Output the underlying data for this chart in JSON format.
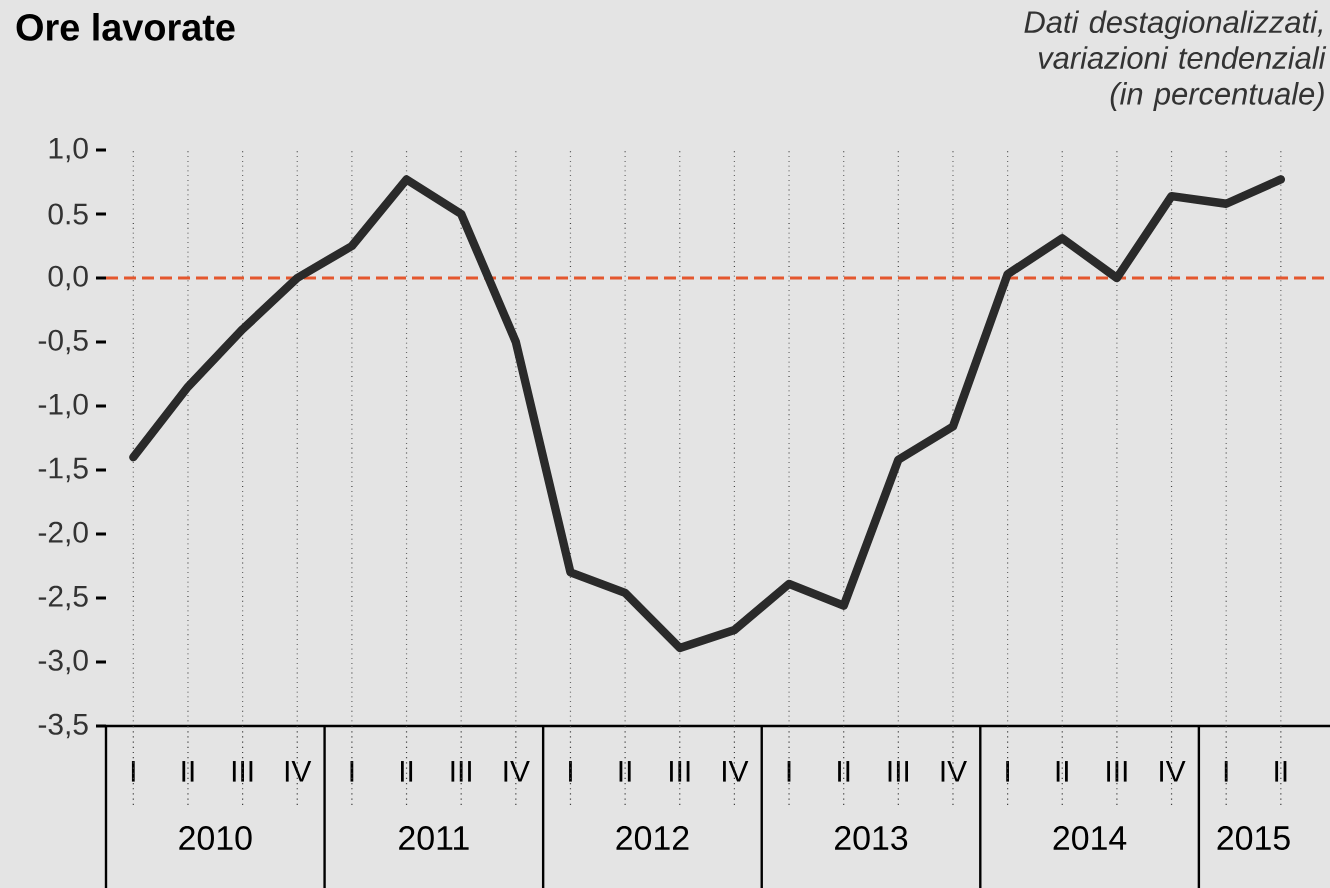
{
  "chart_data": {
    "type": "line",
    "title": "Ore lavorate",
    "subtitle": "Dati destagionalizzati, variazioni tendenziali (in percentuale)",
    "categories": [
      "I",
      "II",
      "III",
      "IV",
      "I",
      "II",
      "III",
      "IV",
      "I",
      "II",
      "III",
      "IV",
      "I",
      "II",
      "III",
      "IV",
      "I",
      "II",
      "III",
      "IV",
      "I",
      "II"
    ],
    "series": [
      {
        "color": "#2a2a2a",
        "values": [
          -1.4,
          -0.85,
          -0.4,
          0.0,
          0.25,
          0.77,
          0.5,
          -0.5,
          -2.3,
          -2.46,
          -2.89,
          -2.75,
          -2.39,
          -2.56,
          -1.42,
          -1.16,
          0.03,
          0.31,
          0.0,
          0.64,
          0.58,
          0.77
        ]
      }
    ],
    "annotations": [
      "2010",
      "2011",
      "2012",
      "2013",
      "2014",
      "2015"
    ],
    "ylim": [
      -3.5,
      1.0
    ],
    "yticks": [
      {
        "value": 1.0,
        "label": "1,0"
      },
      {
        "value": 0.5,
        "label": "0.5"
      },
      {
        "value": 0.0,
        "label": "0,0"
      },
      {
        "value": -0.5,
        "label": "-0,5"
      },
      {
        "value": -1.0,
        "label": "-1,0"
      },
      {
        "value": -1.5,
        "label": "-1,5"
      },
      {
        "value": -2.0,
        "label": "-2,0"
      },
      {
        "value": -2.5,
        "label": "-2,5"
      },
      {
        "value": -3.0,
        "label": "-3,0"
      },
      {
        "value": -3.5,
        "label": "-3,5"
      }
    ],
    "ref_lines": [
      {
        "axis": "y",
        "value": 0,
        "color": "#e4572e",
        "line_style": "dashed"
      }
    ],
    "grid": "x"
  }
}
